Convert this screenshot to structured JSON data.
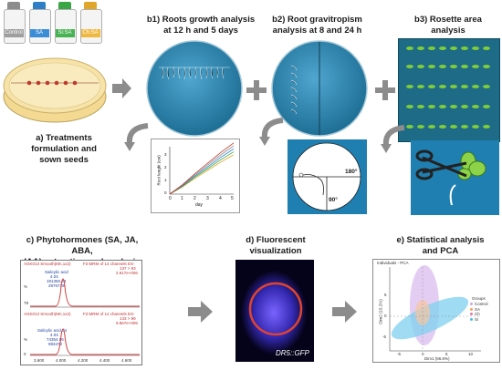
{
  "bottles": [
    {
      "label": "Control",
      "cap_color": "#8c8c8c",
      "band_color": "#9e9e9e"
    },
    {
      "label": "SA",
      "cap_color": "#2e7fc8",
      "band_color": "#3b8ed6"
    },
    {
      "label": "Si:SA",
      "cap_color": "#3aa545",
      "band_color": "#48b352"
    },
    {
      "label": "Ch:SA",
      "cap_color": "#e0a62c",
      "band_color": "#efb840"
    }
  ],
  "step_a": {
    "label_line1": "a) Treatments",
    "label_line2": "formulation and",
    "label_line3": "sown seeds"
  },
  "step_b1": {
    "label_line1": "b1) Roots growth analysis",
    "label_line2": "at 12 h and 5 days",
    "chart_ylabel": "Root lenght (cm)",
    "chart_xlabel": "day",
    "chart_yticks": [
      "0",
      "1",
      "2",
      "3"
    ],
    "chart_xticks": [
      "0",
      "1",
      "2",
      "3",
      "4",
      "5"
    ]
  },
  "step_b2": {
    "label_line1": "b2) Root gravitropism",
    "label_line2": "analysis at 8 and 24 h",
    "angle_180": "180°",
    "angle_90": "90°"
  },
  "step_b3": {
    "label_line1": "b3) Rosette area",
    "label_line2": "analysis"
  },
  "step_c": {
    "label_line1": "c) Phytohormones (SA, JA, ABA,",
    "label_line2": "IAA) extraction and analysis",
    "top_header_left": "AGK013 Smooth(Mn,1x2)",
    "top_header_right": "F2:MRM of 14 channels ES-",
    "top_header_right2": "137 > 93",
    "top_header_right3": "2.917e+006",
    "top_peak_name": "Salicylic acid",
    "top_peak_time": "4.04",
    "top_peak_area": "191350.23",
    "top_peak_height": "2876719",
    "top_y_pct": "%",
    "top_y_val": "78",
    "bottom_header_left": "AGK013 Smooth(Mn,1x2)",
    "bottom_header_right": "F2:MRM of 14 channels ES-",
    "bottom_header_right2": "143 > 99",
    "bottom_header_right3": "9.867e+005",
    "bottom_peak_name": "Salicylic acid d4",
    "bottom_peak_time": "4.04",
    "bottom_peak_area": "74354.96",
    "bottom_peak_height": "983472",
    "bottom_y_pct": "%",
    "bottom_y_val": "0",
    "x_ticks": [
      "3.600",
      "4.000",
      "4.200",
      "4.400",
      "4.600"
    ]
  },
  "step_d": {
    "label_line1": "d) Fluorescent",
    "label_line2": "visualization",
    "marker": "DR5::GFP"
  },
  "step_e": {
    "label_line1": "e) Statistical analysis",
    "label_line2": "and PCA",
    "pca_title": "Individuals - PCA",
    "pca_ylabel": "Dim2 (15.2%)",
    "pca_xlabel": "Dim1 (66.6%)",
    "legend_title": "Groups",
    "groups": [
      {
        "name": "Control",
        "color": "#c9a7e6"
      },
      {
        "name": "SA",
        "color": "#f5a05a"
      },
      {
        "name": "Ch",
        "color": "#e07ab2"
      },
      {
        "name": "Si",
        "color": "#4fb8e6"
      }
    ],
    "x_ticks": [
      "-5",
      "0",
      "5",
      "10"
    ],
    "y_ticks": [
      "5",
      "0",
      "-5"
    ]
  }
}
